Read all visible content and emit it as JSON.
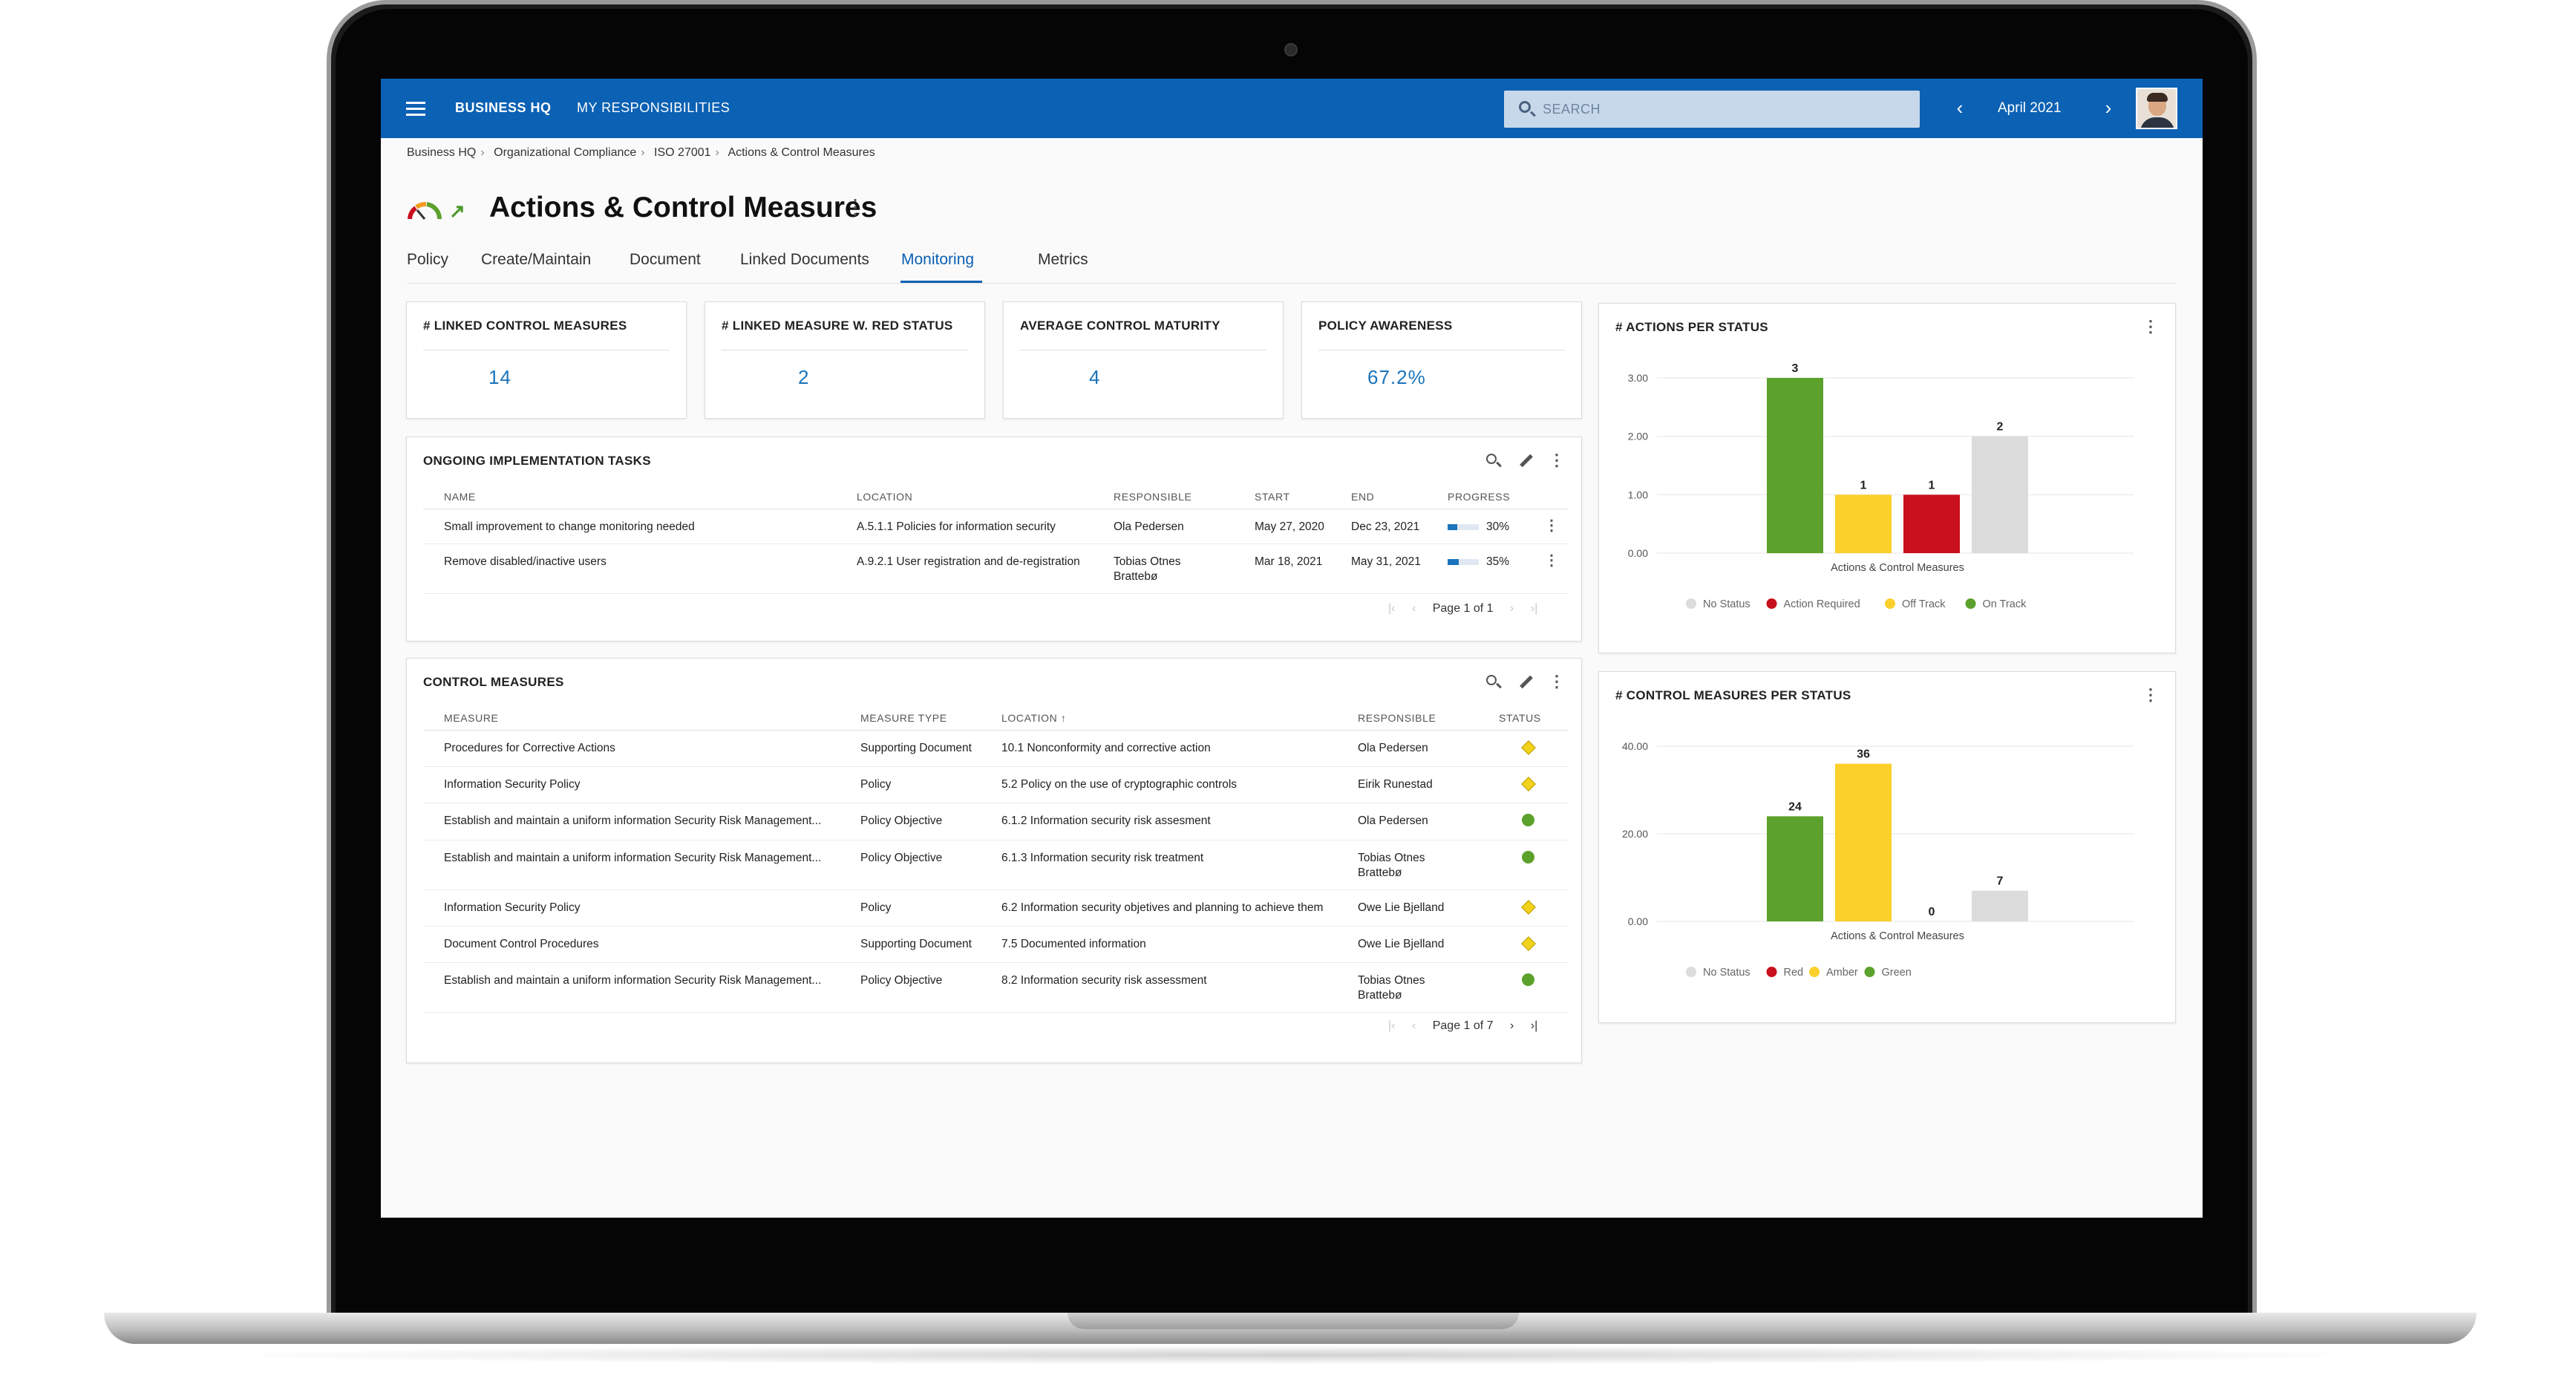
{
  "topbar": {
    "brand": "BUSINESS HQ",
    "my_responsibilities": "MY RESPONSIBILITIES",
    "search_placeholder": "SEARCH",
    "prev": "‹",
    "next": "›",
    "period": "April 2021"
  },
  "breadcrumb": [
    "Business HQ",
    "Organizational Compliance",
    "ISO 27001",
    "Actions & Control Measures"
  ],
  "breadcrumb_sep": "›",
  "page": {
    "title": "Actions & Control Measures",
    "more": "⋮",
    "gauge_icon": "gauge-icon",
    "trend_icon": "trend-up-arrow-icon",
    "trend": "↗"
  },
  "tabs": [
    "Policy",
    "Create/Maintain",
    "Document",
    "Linked Documents",
    "Monitoring",
    "Metrics"
  ],
  "active_tab": "Monitoring",
  "kpis": [
    {
      "label": "# LINKED CONTROL MEASURES",
      "value": "14"
    },
    {
      "label": "# LINKED MEASURE W. RED STATUS",
      "value": "2"
    },
    {
      "label": "AVERAGE CONTROL MATURITY",
      "value": "4"
    },
    {
      "label": "POLICY AWARENESS",
      "value": "67.2%"
    }
  ],
  "tasks": {
    "title": "ONGOING IMPLEMENTATION TASKS",
    "columns": [
      "NAME",
      "LOCATION",
      "RESPONSIBLE",
      "START",
      "END",
      "PROGRESS"
    ],
    "rows": [
      {
        "name": "Small improvement to change monitoring needed",
        "location": "A.5.1.1 Policies for information security",
        "responsible": "Ola Pedersen",
        "start": "May 27, 2020",
        "end": "Dec 23, 2021",
        "progress": "30%",
        "progress_value": 0.3
      },
      {
        "name": "Remove disabled/inactive users",
        "location": "A.9.2.1 User registration and de-registration",
        "responsible": "Tobias Otnes Brattebø",
        "start": "Mar 18, 2021",
        "end": "May 31, 2021",
        "progress": "35%",
        "progress_value": 0.35
      }
    ],
    "pager": "Page 1 of 1"
  },
  "measures": {
    "title": "CONTROL MEASURES",
    "columns": [
      "MEASURE",
      "MEASURE TYPE",
      "LOCATION ↑",
      "RESPONSIBLE",
      "STATUS"
    ],
    "rows": [
      {
        "measure": "Procedures for Corrective Actions",
        "type": "Supporting Document",
        "location": "10.1 Nonconformity and corrective action",
        "responsible": "Ola Pedersen",
        "status": "diamond"
      },
      {
        "measure": "Information Security Policy",
        "type": "Policy",
        "location": "5.2 Policy on the use of cryptographic controls",
        "responsible": "Eirik Runestad",
        "status": "diamond"
      },
      {
        "measure": "Establish and maintain a uniform information Security Risk Management...",
        "type": "Policy Objective",
        "location": "6.1.2 Information security risk assesment",
        "responsible": "Ola Pedersen",
        "status": "circle"
      },
      {
        "measure": "Establish and maintain a uniform information Security Risk Management...",
        "type": "Policy Objective",
        "location": "6.1.3 Information security risk treatment",
        "responsible": "Tobias Otnes Brattebø",
        "status": "circle"
      },
      {
        "measure": "Information Security Policy",
        "type": "Policy",
        "location": "6.2 Information security objetives and planning to achieve them",
        "responsible": "Owe Lie Bjelland",
        "status": "diamond"
      },
      {
        "measure": "Document Control Procedures",
        "type": "Supporting Document",
        "location": "7.5 Documented information",
        "responsible": "Owe Lie Bjelland",
        "status": "diamond"
      },
      {
        "measure": "Establish and maintain a uniform information Security Risk Management...",
        "type": "Policy Objective",
        "location": "8.2 Information security risk assessment",
        "responsible": "Tobias Otnes Brattebø",
        "status": "circle"
      }
    ],
    "pager": "Page 1 of 7"
  },
  "colors": {
    "primary": "#0b61b3",
    "green": "#5ca12c",
    "yellow": "#fbd02a",
    "red": "#c8101f",
    "grey": "#dcdcdc"
  },
  "chart_data": [
    {
      "type": "bar",
      "title": "# ACTIONS PER STATUS",
      "xlabel": "Actions & Control Measures",
      "categories": [
        "Actions & Control Measures"
      ],
      "series": [
        {
          "name": "On Track",
          "values": [
            3
          ],
          "color": "#5ca12c"
        },
        {
          "name": "Off Track",
          "values": [
            1
          ],
          "color": "#fbd02a"
        },
        {
          "name": "Action Required",
          "values": [
            1
          ],
          "color": "#c8101f"
        },
        {
          "name": "No Status",
          "values": [
            2
          ],
          "color": "#dcdcdc"
        }
      ],
      "legend_order": [
        "No Status",
        "Action Required",
        "Off Track",
        "On Track"
      ],
      "yticks": [
        "3.00",
        "2.00",
        "1.00",
        "0.00"
      ],
      "ylim": [
        0,
        3
      ],
      "legend": "bottom",
      "grid": true
    },
    {
      "type": "bar",
      "title": "# CONTROL MEASURES PER STATUS",
      "xlabel": "Actions & Control Measures",
      "categories": [
        "Actions & Control Measures"
      ],
      "series": [
        {
          "name": "Green",
          "values": [
            24
          ],
          "color": "#5ca12c"
        },
        {
          "name": "Amber",
          "values": [
            36
          ],
          "color": "#fbd02a"
        },
        {
          "name": "Red",
          "values": [
            0
          ],
          "color": "#c8101f"
        },
        {
          "name": "No Status",
          "values": [
            7
          ],
          "color": "#dcdcdc"
        }
      ],
      "legend_order": [
        "No Status",
        "Red",
        "Amber",
        "Green"
      ],
      "yticks": [
        "40.00",
        "20.00",
        "0.00"
      ],
      "ylim": [
        0,
        40
      ],
      "legend": "bottom",
      "grid": true
    }
  ]
}
